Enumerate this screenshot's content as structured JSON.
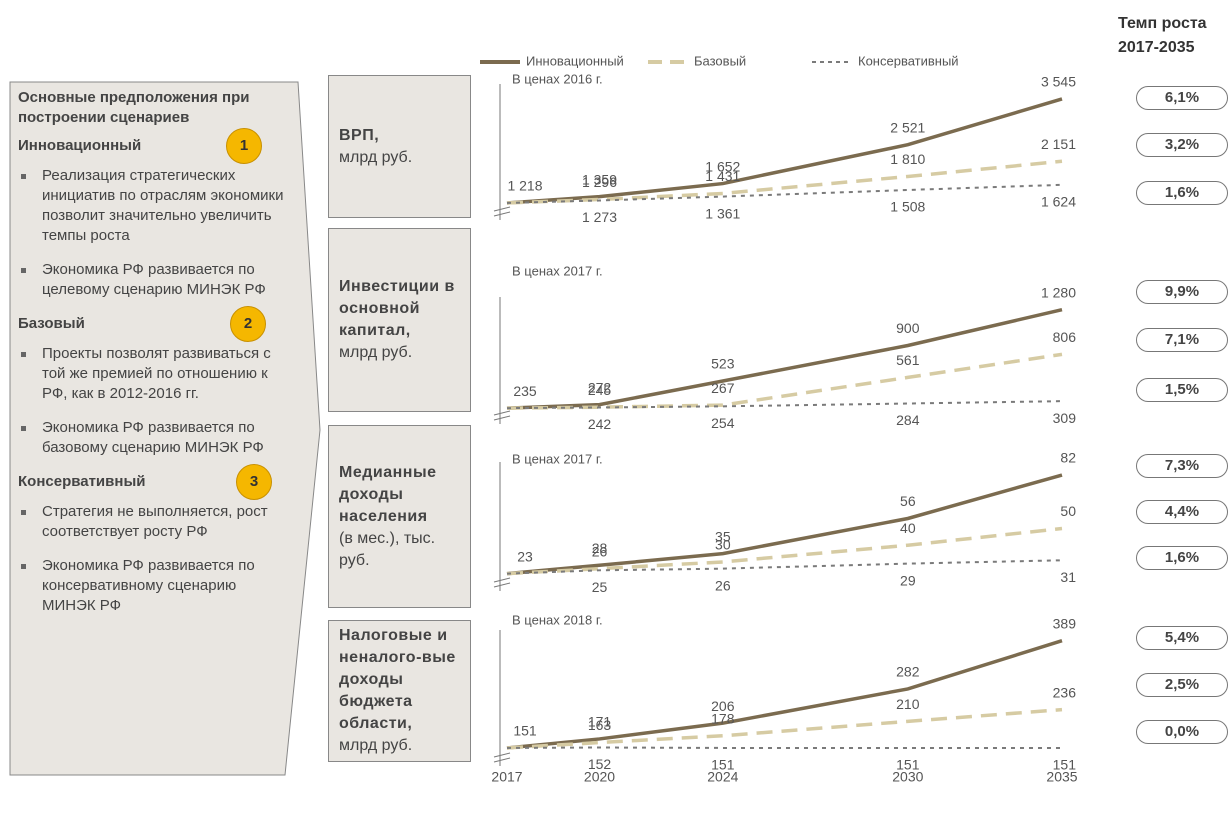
{
  "chart_data": {
    "type": "line",
    "legend": [
      "Инновационный",
      "Базовый",
      "Консервативный"
    ],
    "growth_title": [
      "Темп роста",
      "2017-2035"
    ],
    "x": [
      2017,
      2020,
      2024,
      2030,
      2035
    ],
    "xlim": [
      2017,
      2035
    ],
    "xticks": [
      2017,
      2020,
      2024,
      2030,
      2035
    ],
    "colors": [
      "#7b6b4f",
      "#d6cba3",
      "#7a7a7a"
    ],
    "panels": [
      {
        "label_bold": "ВРП,",
        "label": "млрд руб.",
        "note": "В ценах 2016 г.",
        "ylim": [
          1150,
          3700
        ],
        "growth": [
          "6,1%",
          "3,2%",
          "1,6%"
        ],
        "series": [
          {
            "values": [
              1218,
              1359,
              1652,
              2521,
              3545
            ],
            "value_labels": [
              "1 218",
              "1 359",
              "1 652",
              "2 521",
              "3 545"
            ]
          },
          {
            "values": [
              1218,
              1296,
              1431,
              1810,
              2151
            ],
            "value_labels": [
              null,
              "1 296",
              "1 431",
              "1 810",
              "2 151"
            ]
          },
          {
            "values": [
              1218,
              1273,
              1361,
              1508,
              1624
            ],
            "value_labels": [
              null,
              "1 273",
              "1 361",
              "1 508",
              "1 624"
            ]
          }
        ]
      },
      {
        "label_bold": "Инвестиции в основной капитал,",
        "label": "млрд руб.",
        "note": "В ценах 2017 г.",
        "ylim": [
          215,
          1330
        ],
        "growth": [
          "9,9%",
          "7,1%",
          "1,5%"
        ],
        "series": [
          {
            "values": [
              235,
              272,
              523,
              900,
              1280
            ],
            "value_labels": [
              "235",
              "272",
              "523",
              "900",
              "1 280"
            ]
          },
          {
            "values": [
              235,
              245,
              267,
              561,
              806
            ],
            "value_labels": [
              null,
              "245",
              "267",
              "561",
              "806"
            ]
          },
          {
            "values": [
              235,
              242,
              254,
              284,
              309
            ],
            "value_labels": [
              null,
              "242",
              "254",
              "284",
              "309"
            ]
          }
        ]
      },
      {
        "label_bold": "Медианные доходы населения",
        "label": "(в мес.), тыс. руб.",
        "note": "В ценах 2017 г.",
        "ylim": [
          21,
          85
        ],
        "growth": [
          "7,3%",
          "4,4%",
          "1,6%"
        ],
        "series": [
          {
            "values": [
              23,
              28,
              35,
              56,
              82
            ]
          },
          {
            "values": [
              23,
              26,
              30,
              40,
              50
            ]
          },
          {
            "values": [
              23,
              25,
              26,
              29,
              31
            ]
          }
        ]
      },
      {
        "label_bold": "Налоговые и неналого-вые доходы бюджета области,",
        "label": "млрд руб.",
        "note": "В ценах 2018 г.",
        "ylim": [
          142,
          395
        ],
        "growth": [
          "5,4%",
          "2,5%",
          "0,0%"
        ],
        "series": [
          {
            "values": [
              151,
              171,
              206,
              282,
              389
            ]
          },
          {
            "values": [
              151,
              163,
              178,
              210,
              236
            ]
          },
          {
            "values": [
              151,
              152,
              151,
              151,
              151
            ]
          }
        ]
      }
    ]
  },
  "scenarios": {
    "title": "Основные предположения при построении сценариев",
    "items": [
      {
        "name": "Инновационный",
        "number": "1",
        "bullets": [
          "Реализация стратегических инициатив по отраслям экономики позволит значительно увеличить темпы роста",
          "Экономика РФ развивается по целевому сценарию МИНЭК РФ"
        ]
      },
      {
        "name": "Базовый",
        "number": "2",
        "bullets": [
          "Проекты позволят развиваться с той же премией по отношению к РФ, как в 2012-2016 гг.",
          "Экономика РФ развивается по базовому сценарию МИНЭК РФ"
        ]
      },
      {
        "name": "Консервативный",
        "number": "3",
        "bullets": [
          "Стратегия не выполняется, рост соответствует росту РФ",
          "Экономика РФ развивается по консервативному сценарию МИНЭК РФ"
        ]
      }
    ]
  }
}
